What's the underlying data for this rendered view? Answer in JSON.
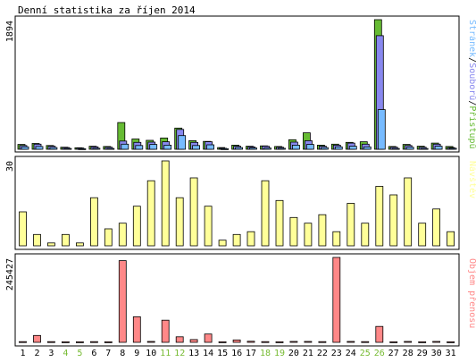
{
  "title": "Denní statistika za říjen 2014",
  "colors": {
    "background": "#ffffff",
    "panel_border": "#000000",
    "access": "#66bb33",
    "files": "#8888ee",
    "pages": "#77bbff",
    "visits": "#ffff99",
    "transfer": "#ff8888",
    "weekend_label": "#77bb33",
    "bar_stroke": "#000000"
  },
  "chart_data": [
    {
      "type": "bar",
      "max_label": "1894",
      "legend": {
        "pages": "Stránek",
        "sep1": "/",
        "files": "Souborů",
        "sep2": "/",
        "access": "Přístupů"
      },
      "categories": [
        "1",
        "2",
        "3",
        "4",
        "5",
        "6",
        "7",
        "8",
        "9",
        "10",
        "11",
        "12",
        "13",
        "14",
        "15",
        "16",
        "17",
        "18",
        "19",
        "20",
        "21",
        "22",
        "23",
        "24",
        "25",
        "26",
        "27",
        "28",
        "29",
        "30",
        "31"
      ],
      "series": [
        {
          "name": "Přístupů",
          "values": [
            70,
            85,
            55,
            30,
            22,
            45,
            40,
            390,
            150,
            130,
            165,
            310,
            125,
            115,
            25,
            60,
            45,
            50,
            40,
            140,
            240,
            60,
            75,
            100,
            110,
            1894,
            40,
            70,
            45,
            90,
            40
          ]
        },
        {
          "name": "Souborů",
          "values": [
            55,
            75,
            45,
            25,
            18,
            35,
            30,
            120,
            100,
            105,
            110,
            290,
            100,
            110,
            15,
            45,
            35,
            45,
            30,
            105,
            125,
            45,
            60,
            90,
            75,
            1660,
            30,
            55,
            30,
            75,
            25
          ]
        },
        {
          "name": "Stránek",
          "values": [
            35,
            40,
            25,
            12,
            8,
            15,
            12,
            75,
            55,
            70,
            60,
            200,
            55,
            65,
            8,
            25,
            20,
            18,
            15,
            60,
            70,
            25,
            35,
            45,
            35,
            580,
            12,
            30,
            12,
            45,
            15
          ]
        }
      ],
      "weekend_days": [
        4,
        5,
        11,
        12,
        18,
        19,
        25,
        26
      ],
      "ylim": [
        0,
        1894
      ]
    },
    {
      "type": "bar",
      "max_label": "30",
      "legend": "Návštěv",
      "categories": [
        "1",
        "2",
        "3",
        "4",
        "5",
        "6",
        "7",
        "8",
        "9",
        "10",
        "11",
        "12",
        "13",
        "14",
        "15",
        "16",
        "17",
        "18",
        "19",
        "20",
        "21",
        "22",
        "23",
        "24",
        "25",
        "26",
        "27",
        "28",
        "29",
        "30",
        "31"
      ],
      "values": [
        12,
        4,
        1,
        4,
        1,
        17,
        6,
        8,
        14,
        23,
        30,
        17,
        24,
        14,
        2,
        4,
        5,
        23,
        16,
        10,
        8,
        11,
        5,
        15,
        8,
        21,
        18,
        24,
        8,
        13,
        5
      ],
      "ylim": [
        0,
        30
      ]
    },
    {
      "type": "bar",
      "max_label": "245427",
      "legend": "Objem přenosu",
      "categories": [
        "1",
        "2",
        "3",
        "4",
        "5",
        "6",
        "7",
        "8",
        "9",
        "10",
        "11",
        "12",
        "13",
        "14",
        "15",
        "16",
        "17",
        "18",
        "19",
        "20",
        "21",
        "22",
        "23",
        "24",
        "25",
        "26",
        "27",
        "28",
        "29",
        "30",
        "31"
      ],
      "values": [
        2000,
        20000,
        2000,
        1500,
        1500,
        2000,
        1500,
        236000,
        74000,
        2500,
        64000,
        16000,
        8000,
        24000,
        1500,
        7000,
        3000,
        2000,
        1500,
        2500,
        2500,
        2000,
        245427,
        2500,
        2000,
        46000,
        1500,
        2500,
        1500,
        2500,
        1500
      ],
      "ylim": [
        0,
        245427
      ]
    }
  ]
}
